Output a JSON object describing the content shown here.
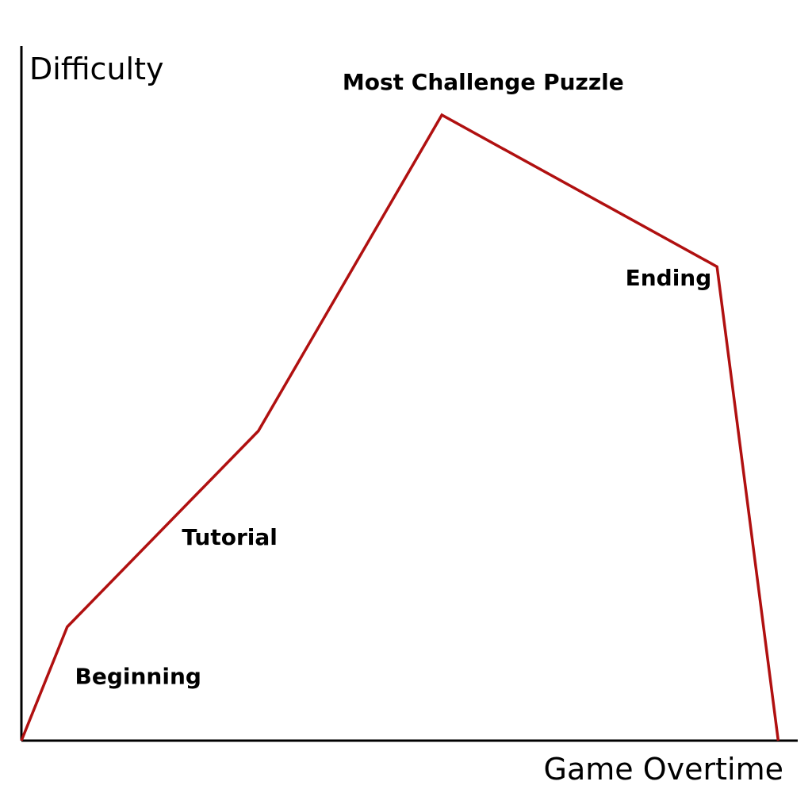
{
  "chart_data": {
    "type": "line",
    "title": "",
    "xlabel": "Game Overtime",
    "ylabel": "Difficulty",
    "xlim": [
      0,
      10
    ],
    "ylim": [
      0,
      10
    ],
    "grid": false,
    "tick_labels_shown": false,
    "line_color": "#b01010",
    "axis_color": "#000000",
    "series": [
      {
        "points": [
          {
            "x": 0.0,
            "y": 0.0
          },
          {
            "x": 0.6,
            "y": 1.8
          },
          {
            "x": 3.1,
            "y": 4.9
          },
          {
            "x": 5.5,
            "y": 9.9
          },
          {
            "x": 9.1,
            "y": 7.5
          },
          {
            "x": 9.9,
            "y": 0.0
          }
        ]
      }
    ],
    "annotations": [
      {
        "text": "Beginning",
        "x": 0.7,
        "y": 0.9
      },
      {
        "text": "Tutorial",
        "x": 2.1,
        "y": 3.1
      },
      {
        "text": "Most Challenge Puzzle",
        "x": 4.2,
        "y": 10.3
      },
      {
        "text": "Ending",
        "x": 7.9,
        "y": 7.2
      }
    ]
  }
}
